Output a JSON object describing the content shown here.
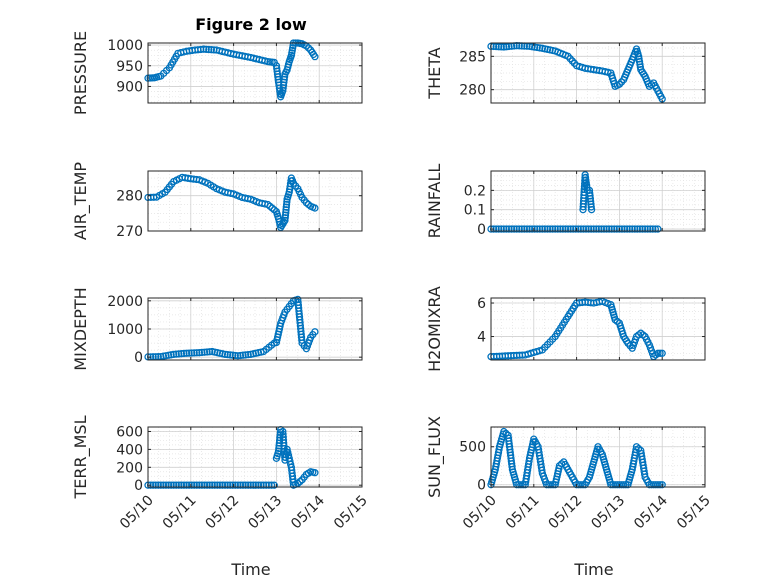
{
  "figure": {
    "title": "Figure 2 low"
  },
  "colors": {
    "marker": "#0072BD",
    "axis": "#262626",
    "grid": "#d0d0d0",
    "minor_grid": "#e2e2e2"
  },
  "time_axis": {
    "ticks": [
      0,
      1,
      2,
      3,
      4,
      5
    ],
    "tick_labels": [
      "05/10",
      "05/11",
      "05/12",
      "05/13",
      "05/14",
      "05/15"
    ],
    "label": "Time",
    "range": [
      0,
      5
    ]
  },
  "chart_data": [
    {
      "type": "scatter",
      "column": 0,
      "row": 0,
      "title": "Figure 2 low",
      "ylabel": "PRESSURE",
      "ylim": [
        860,
        1005
      ],
      "yticks": [
        900,
        950,
        1000
      ],
      "ytick_labels": [
        "900",
        "950",
        "1000"
      ],
      "grid": true,
      "series": [
        {
          "segments": [
            {
              "x": [
                0.0,
                0.15,
                0.3,
                0.5,
                0.7,
                0.9,
                1.1,
                1.3,
                1.6,
                1.8,
                2.0,
                2.2,
                2.4,
                2.6,
                2.8,
                2.95
              ],
              "y": [
                920,
                921,
                925,
                945,
                980,
                985,
                988,
                990,
                988,
                983,
                978,
                974,
                970,
                965,
                960,
                958
              ]
            },
            {
              "x": [
                3.0,
                3.05,
                3.1,
                3.15,
                3.2,
                3.25,
                3.3,
                3.35,
                3.4,
                3.5,
                3.6,
                3.7,
                3.8,
                3.9
              ],
              "y": [
                950,
                910,
                875,
                890,
                930,
                940,
                960,
                975,
                1005,
                1005,
                1003,
                998,
                988,
                972
              ]
            }
          ]
        }
      ]
    },
    {
      "type": "scatter",
      "column": 1,
      "row": 0,
      "ylabel": "THETA",
      "ylim": [
        278,
        287
      ],
      "yticks": [
        280,
        285
      ],
      "ytick_labels": [
        "280",
        "285"
      ],
      "grid": true,
      "series": [
        {
          "segments": [
            {
              "x": [
                0.0,
                0.3,
                0.6,
                0.9,
                1.2,
                1.5,
                1.8,
                2.0,
                2.2,
                2.4,
                2.6,
                2.8,
                2.9,
                3.0,
                3.1,
                3.2,
                3.3,
                3.4,
                3.45,
                3.5,
                3.6,
                3.7,
                3.8,
                3.9,
                4.0
              ],
              "y": [
                286.5,
                286.4,
                286.6,
                286.5,
                286.2,
                285.8,
                285.0,
                283.6,
                283.2,
                283.0,
                282.8,
                282.5,
                280.5,
                280.8,
                281.5,
                283.0,
                284.5,
                286.1,
                285.0,
                283.0,
                282.0,
                280.5,
                281.0,
                279.8,
                278.6
              ]
            }
          ]
        }
      ]
    },
    {
      "type": "scatter",
      "column": 0,
      "row": 1,
      "ylabel": "AIR_TEMP",
      "ylim": [
        270,
        287
      ],
      "yticks": [
        270,
        280
      ],
      "ytick_labels": [
        "270",
        "280"
      ],
      "grid": true,
      "series": [
        {
          "segments": [
            {
              "x": [
                0.0,
                0.2,
                0.4,
                0.6,
                0.8,
                1.0,
                1.2,
                1.4,
                1.6,
                1.8,
                2.0,
                2.2,
                2.4,
                2.6,
                2.8,
                2.95
              ],
              "y": [
                279.5,
                279.6,
                281.0,
                284.0,
                285.2,
                284.8,
                284.5,
                283.5,
                282.0,
                281.0,
                280.5,
                279.5,
                279.0,
                278.0,
                277.5,
                276.0
              ]
            },
            {
              "x": [
                3.0,
                3.05,
                3.1,
                3.15,
                3.2,
                3.25,
                3.3,
                3.35,
                3.4,
                3.5,
                3.6,
                3.7,
                3.8,
                3.9
              ],
              "y": [
                275.5,
                273.5,
                271.0,
                272.0,
                273.0,
                279.0,
                281.0,
                285.0,
                283.5,
                282.0,
                279.5,
                278.0,
                277.0,
                276.5
              ]
            }
          ]
        }
      ]
    },
    {
      "type": "scatter",
      "column": 1,
      "row": 1,
      "ylabel": "RAINFALL",
      "ylim": [
        -0.01,
        0.3
      ],
      "yticks": [
        0,
        0.1,
        0.2
      ],
      "ytick_labels": [
        "0",
        "0.1",
        "0.2"
      ],
      "grid": true,
      "series": [
        {
          "segments": [
            {
              "x": [
                0.0,
                0.3,
                0.6,
                0.9,
                1.2,
                1.5,
                1.8,
                2.1,
                2.4,
                2.7,
                3.0,
                3.3,
                3.6,
                3.9
              ],
              "y": [
                0,
                0,
                0,
                0,
                0,
                0,
                0,
                0,
                0,
                0,
                0,
                0,
                0,
                0
              ]
            },
            {
              "x": [
                2.15,
                2.2,
                2.25,
                2.3,
                2.35
              ],
              "y": [
                0.1,
                0.28,
                0.2,
                0.2,
                0.1
              ]
            }
          ]
        }
      ]
    },
    {
      "type": "scatter",
      "column": 0,
      "row": 2,
      "ylabel": "MIXDEPTH",
      "ylim": [
        -100,
        2100
      ],
      "yticks": [
        0,
        1000,
        2000
      ],
      "ytick_labels": [
        "0",
        "1000",
        "2000"
      ],
      "grid": true,
      "series": [
        {
          "segments": [
            {
              "x": [
                0.0,
                0.3,
                0.6,
                0.9,
                1.2,
                1.5,
                1.8,
                2.1,
                2.4,
                2.7,
                2.95
              ],
              "y": [
                10,
                20,
                100,
                140,
                160,
                200,
                100,
                50,
                100,
                200,
                500
              ]
            },
            {
              "x": [
                3.0,
                3.1,
                3.2,
                3.3,
                3.4,
                3.5,
                3.6,
                3.7,
                3.8,
                3.9
              ],
              "y": [
                520,
                1200,
                1600,
                1800,
                2000,
                2050,
                500,
                300,
                700,
                900
              ]
            }
          ]
        }
      ]
    },
    {
      "type": "scatter",
      "column": 1,
      "row": 2,
      "ylabel": "H2OMIXRA",
      "ylim": [
        2.6,
        6.3
      ],
      "yticks": [
        4,
        6
      ],
      "ytick_labels": [
        "4",
        "6"
      ],
      "grid": true,
      "series": [
        {
          "segments": [
            {
              "x": [
                0.0,
                0.4,
                0.8,
                1.2,
                1.5,
                1.8,
                2.0,
                2.2,
                2.4,
                2.6,
                2.8,
                2.9,
                3.0,
                3.1,
                3.2,
                3.3,
                3.4,
                3.5,
                3.6,
                3.7,
                3.8,
                3.9,
                4.0
              ],
              "y": [
                2.8,
                2.85,
                2.9,
                3.2,
                4.0,
                5.2,
                6.0,
                6.05,
                6.0,
                6.1,
                5.9,
                5.0,
                4.8,
                4.0,
                3.6,
                3.3,
                4.0,
                4.2,
                4.0,
                3.5,
                2.8,
                3.0,
                3.0
              ]
            }
          ]
        }
      ]
    },
    {
      "type": "scatter",
      "column": 0,
      "row": 3,
      "ylabel": "TERR_MSL",
      "ylim": [
        -20,
        650
      ],
      "yticks": [
        0,
        200,
        400,
        600
      ],
      "ytick_labels": [
        "0",
        "200",
        "400",
        "600"
      ],
      "grid": true,
      "series": [
        {
          "segments": [
            {
              "x": [
                0.0,
                0.3,
                0.6,
                0.9,
                1.2,
                1.5,
                1.8,
                2.1,
                2.4,
                2.7,
                2.95
              ],
              "y": [
                0,
                0,
                0,
                0,
                0,
                0,
                0,
                0,
                0,
                0,
                0
              ]
            },
            {
              "x": [
                3.0,
                3.05,
                3.1,
                3.15,
                3.2,
                3.25,
                3.3,
                3.35,
                3.4,
                3.5,
                3.6,
                3.7,
                3.8,
                3.9
              ],
              "y": [
                300,
                380,
                620,
                600,
                280,
                400,
                300,
                200,
                0,
                20,
                60,
                120,
                150,
                140
              ]
            }
          ]
        }
      ]
    },
    {
      "type": "scatter",
      "column": 1,
      "row": 3,
      "ylabel": "SUN_FLUX",
      "ylim": [
        -30,
        760
      ],
      "yticks": [
        0,
        500
      ],
      "ytick_labels": [
        "0",
        "500"
      ],
      "grid": true,
      "series": [
        {
          "segments": [
            {
              "x": [
                0.0,
                0.1,
                0.2,
                0.3,
                0.4,
                0.5,
                0.6,
                0.7,
                0.8,
                0.9,
                1.0,
                1.1,
                1.2,
                1.3,
                1.4,
                1.5,
                1.6,
                1.7,
                1.8,
                1.9,
                2.0,
                2.1,
                2.2,
                2.3,
                2.4,
                2.5,
                2.6,
                2.7,
                2.8,
                2.9,
                3.0,
                3.1,
                3.2,
                3.3,
                3.4,
                3.5,
                3.6,
                3.7,
                3.8,
                3.9,
                4.0
              ],
              "y": [
                0,
                200,
                500,
                700,
                650,
                200,
                0,
                0,
                0,
                350,
                600,
                500,
                150,
                0,
                0,
                0,
                250,
                300,
                200,
                100,
                0,
                0,
                0,
                100,
                300,
                500,
                400,
                200,
                0,
                0,
                0,
                0,
                0,
                200,
                500,
                450,
                100,
                0,
                0,
                0,
                0
              ]
            }
          ]
        }
      ]
    }
  ]
}
